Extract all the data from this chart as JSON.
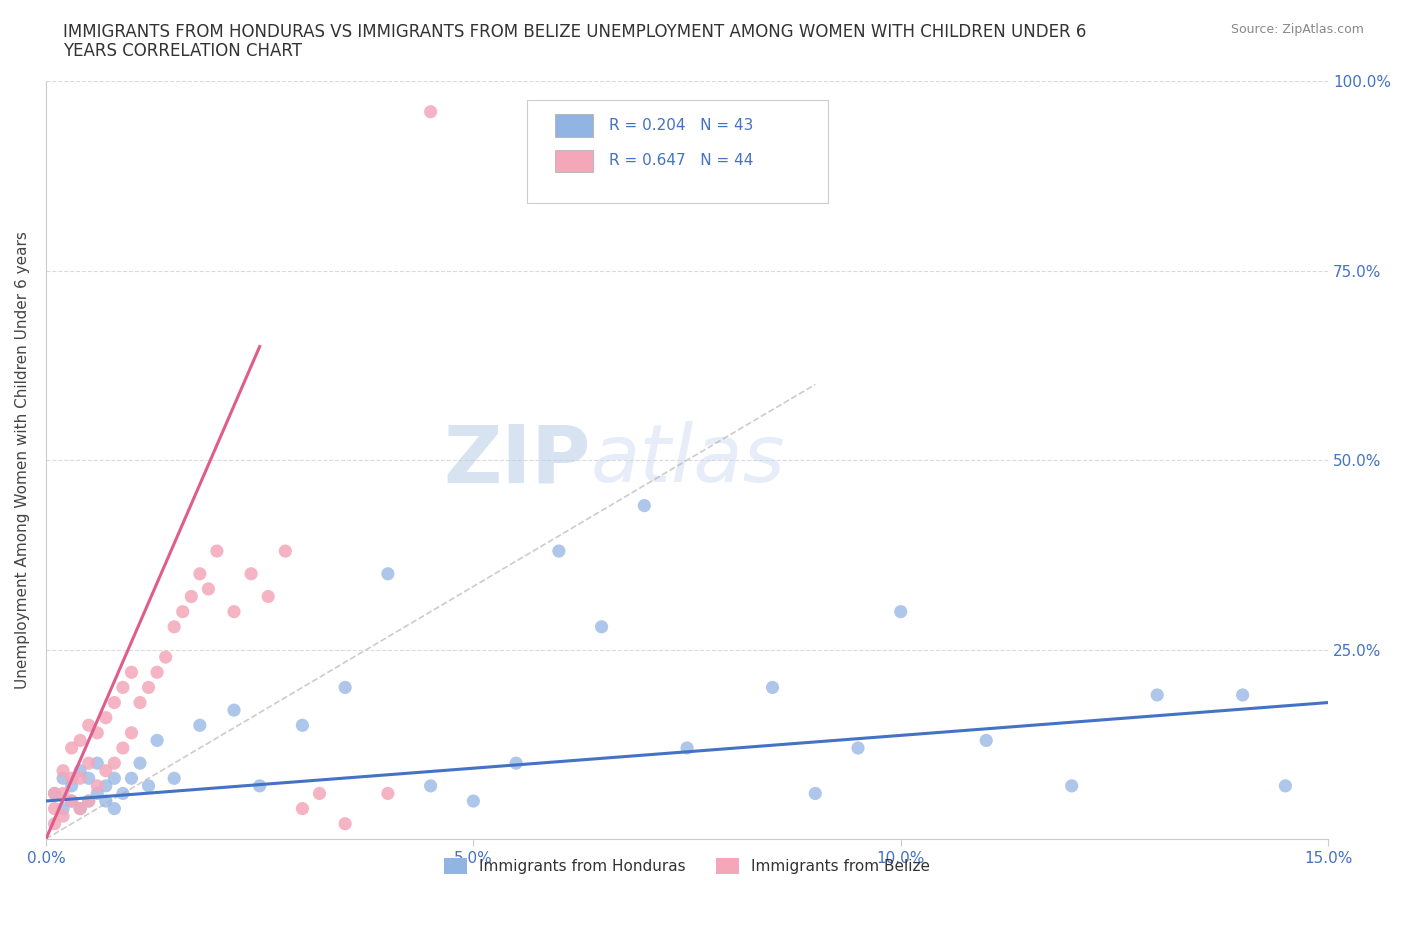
{
  "title_line1": "IMMIGRANTS FROM HONDURAS VS IMMIGRANTS FROM BELIZE UNEMPLOYMENT AMONG WOMEN WITH CHILDREN UNDER 6",
  "title_line2": "YEARS CORRELATION CHART",
  "source": "Source: ZipAtlas.com",
  "ylabel": "Unemployment Among Women with Children Under 6 years",
  "xlim": [
    0.0,
    0.15
  ],
  "ylim": [
    0.0,
    1.0
  ],
  "xticks": [
    0.0,
    0.05,
    0.1,
    0.15
  ],
  "xticklabels": [
    "0.0%",
    "5.0%",
    "10.0%",
    "15.0%"
  ],
  "yticks": [
    0.0,
    0.25,
    0.5,
    0.75,
    1.0
  ],
  "legend_R1": "R = 0.204",
  "legend_N1": "N = 43",
  "legend_R2": "R = 0.647",
  "legend_N2": "N = 44",
  "legend_label1": "Immigrants from Honduras",
  "legend_label2": "Immigrants from Belize",
  "color_honduras": "#92b4e3",
  "color_belize": "#f4a7b9",
  "color_honduras_line": "#4472c4",
  "color_belize_line": "#e05c8a",
  "color_text_blue": "#4472c4",
  "background_color": "#ffffff",
  "grid_color": "#cccccc",
  "honduras_x": [
    0.001,
    0.002,
    0.002,
    0.003,
    0.003,
    0.004,
    0.004,
    0.005,
    0.005,
    0.006,
    0.006,
    0.007,
    0.007,
    0.008,
    0.008,
    0.009,
    0.01,
    0.011,
    0.012,
    0.013,
    0.015,
    0.018,
    0.022,
    0.025,
    0.03,
    0.035,
    0.04,
    0.045,
    0.05,
    0.055,
    0.06,
    0.065,
    0.07,
    0.075,
    0.085,
    0.09,
    0.095,
    0.1,
    0.11,
    0.12,
    0.13,
    0.14,
    0.145
  ],
  "honduras_y": [
    0.06,
    0.04,
    0.08,
    0.05,
    0.07,
    0.04,
    0.09,
    0.05,
    0.08,
    0.06,
    0.1,
    0.05,
    0.07,
    0.04,
    0.08,
    0.06,
    0.08,
    0.1,
    0.07,
    0.13,
    0.08,
    0.15,
    0.17,
    0.07,
    0.15,
    0.2,
    0.35,
    0.07,
    0.05,
    0.1,
    0.38,
    0.28,
    0.44,
    0.12,
    0.2,
    0.06,
    0.12,
    0.3,
    0.13,
    0.07,
    0.19,
    0.19,
    0.07
  ],
  "belize_x": [
    0.001,
    0.001,
    0.001,
    0.002,
    0.002,
    0.002,
    0.003,
    0.003,
    0.003,
    0.004,
    0.004,
    0.004,
    0.005,
    0.005,
    0.005,
    0.006,
    0.006,
    0.007,
    0.007,
    0.008,
    0.008,
    0.009,
    0.009,
    0.01,
    0.01,
    0.011,
    0.012,
    0.013,
    0.014,
    0.015,
    0.016,
    0.017,
    0.018,
    0.019,
    0.02,
    0.022,
    0.024,
    0.026,
    0.028,
    0.03,
    0.032,
    0.035,
    0.04,
    0.045
  ],
  "belize_y": [
    0.02,
    0.04,
    0.06,
    0.03,
    0.06,
    0.09,
    0.05,
    0.08,
    0.12,
    0.04,
    0.08,
    0.13,
    0.05,
    0.1,
    0.15,
    0.07,
    0.14,
    0.09,
    0.16,
    0.1,
    0.18,
    0.12,
    0.2,
    0.14,
    0.22,
    0.18,
    0.2,
    0.22,
    0.24,
    0.28,
    0.3,
    0.32,
    0.35,
    0.33,
    0.38,
    0.3,
    0.35,
    0.32,
    0.38,
    0.04,
    0.06,
    0.02,
    0.06,
    0.96
  ],
  "belize_line_x": [
    0.0,
    0.025
  ],
  "belize_line_y": [
    0.0,
    0.65
  ],
  "honduras_line_x": [
    0.0,
    0.15
  ],
  "honduras_line_y": [
    0.05,
    0.18
  ],
  "diag_line_x": [
    0.0,
    0.09
  ],
  "diag_line_y": [
    0.0,
    0.6
  ]
}
